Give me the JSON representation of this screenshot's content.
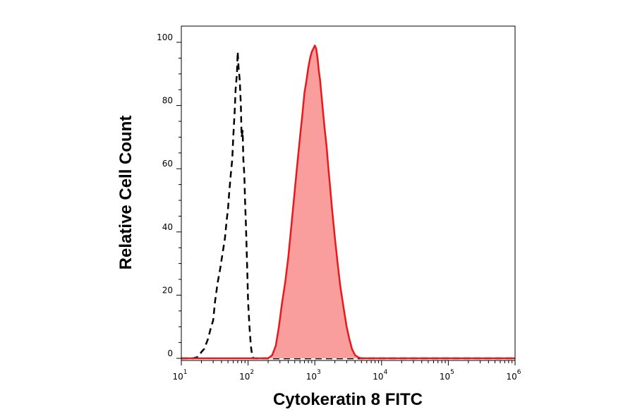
{
  "chart_data": {
    "type": "area",
    "title": "",
    "xlabel": "Cytokeratin 8 FITC",
    "ylabel": "Relative Cell Count",
    "x_scale": "log",
    "xlim": [
      10,
      1000000
    ],
    "ylim": [
      0,
      100
    ],
    "grid": false,
    "x_ticks": [
      {
        "value": 10,
        "base": "10",
        "exp": "1"
      },
      {
        "value": 100,
        "base": "10",
        "exp": "2"
      },
      {
        "value": 1000,
        "base": "10",
        "exp": "3"
      },
      {
        "value": 10000,
        "base": "10",
        "exp": "4"
      },
      {
        "value": 100000,
        "base": "10",
        "exp": "5"
      },
      {
        "value": 1000000,
        "base": "10",
        "exp": "6"
      }
    ],
    "y_ticks": [
      {
        "value": 0,
        "label": "0"
      },
      {
        "value": 20,
        "label": "20"
      },
      {
        "value": 40,
        "label": "40"
      },
      {
        "value": 60,
        "label": "60"
      },
      {
        "value": 80,
        "label": "80"
      },
      {
        "value": 100,
        "label": "100"
      }
    ],
    "series": [
      {
        "style": "dashed",
        "color": "#000000",
        "fill": "none",
        "x": [
          10,
          15,
          18,
          20,
          22,
          25,
          28,
          30,
          32,
          35,
          38,
          42,
          45,
          48,
          50,
          52,
          55,
          58,
          60,
          63,
          65,
          68,
          70,
          72,
          75,
          78,
          80,
          83,
          85,
          88,
          90,
          93,
          95,
          98,
          100,
          105,
          110,
          115,
          120,
          130,
          1000000
        ],
        "y": [
          0,
          0,
          0.5,
          2,
          3,
          6,
          10,
          12,
          18,
          24,
          28,
          34,
          38,
          44,
          47,
          52,
          58,
          63,
          70,
          78,
          85,
          90,
          97,
          92,
          88,
          80,
          70,
          72,
          63,
          58,
          50,
          42,
          35,
          25,
          18,
          10,
          4,
          1,
          0,
          0,
          0
        ]
      },
      {
        "style": "solid-filled",
        "color": "#e8191b",
        "fill": "#f99d9d",
        "x": [
          10,
          200,
          230,
          260,
          290,
          320,
          360,
          400,
          450,
          500,
          550,
          600,
          650,
          700,
          750,
          800,
          850,
          900,
          950,
          1000,
          1050,
          1100,
          1150,
          1200,
          1300,
          1400,
          1500,
          1600,
          1700,
          1800,
          2000,
          2200,
          2400,
          2700,
          3000,
          3300,
          3600,
          4000,
          4500,
          5000,
          1000000
        ],
        "y": [
          0,
          0,
          1,
          4,
          10,
          17,
          24,
          32,
          43,
          53,
          62,
          70,
          77,
          84,
          88,
          92,
          95,
          97,
          98,
          99,
          98,
          95,
          91,
          88,
          80,
          73,
          67,
          60,
          54,
          48,
          38,
          30,
          23,
          16,
          10,
          6,
          3,
          1,
          0.3,
          0,
          0
        ]
      }
    ]
  }
}
